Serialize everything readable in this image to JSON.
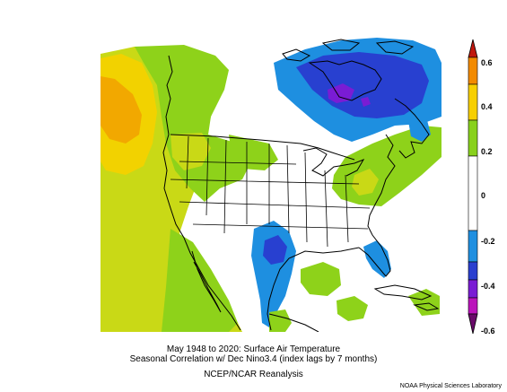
{
  "title": {
    "line1": "May 1948 to 2020: Surface Air Temperature",
    "line2": "Seasonal Correlation w/ Dec Nino3.4 (index lags by 7 months)",
    "line3": "NCEP/NCAR Reanalysis"
  },
  "credit": "NOAA Physical Sciences Laboratory",
  "colorbar": {
    "labels": [
      "0.6",
      "0.4",
      "0.2",
      "0",
      "-0.2",
      "-0.4",
      "-0.6"
    ],
    "colors": [
      "#c0180e",
      "#f28a00",
      "#f7cf00",
      "#88d11c",
      "#ffffff",
      "#1f8fe0",
      "#2a3fcf",
      "#7a1cd4",
      "#bb14bb",
      "#6a0a6a"
    ]
  },
  "map": {
    "region": "North America",
    "legend_colors": {
      "orange": "#f2a800",
      "yellow": "#f2d200",
      "yellow_green": "#c9d916",
      "green": "#8ed21a",
      "blue": "#1e8fe0",
      "dark_blue": "#2840d0",
      "purple": "#7a1cd4"
    }
  }
}
